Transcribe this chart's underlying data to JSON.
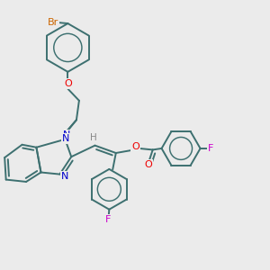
{
  "background_color": "#ebebeb",
  "bond_color": "#3d7070",
  "bond_width": 1.4,
  "atom_colors": {
    "Br": "#cc6600",
    "O": "#ee0000",
    "N": "#0000cc",
    "F": "#cc00cc",
    "H": "#888888",
    "C": "#3d7070"
  },
  "figsize": [
    3.0,
    3.0
  ],
  "dpi": 100
}
